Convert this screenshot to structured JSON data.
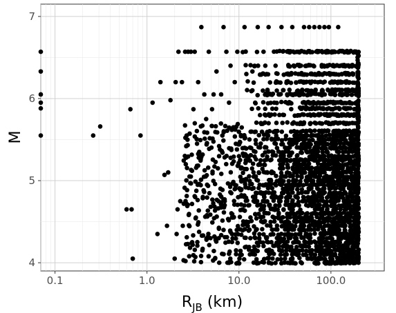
{
  "chart_data": {
    "type": "scatter",
    "title": "",
    "xlabel": {
      "main": "R",
      "subscript": "JB",
      "suffix": " (km)"
    },
    "ylabel": "M",
    "x_scale": "log10",
    "xlim": [
      0.07,
      380
    ],
    "ylim": [
      3.9,
      7.15
    ],
    "x_ticks": [
      {
        "value": 0.1,
        "label": "0.1"
      },
      {
        "value": 1,
        "label": "1.0"
      },
      {
        "value": 10,
        "label": "10.0"
      },
      {
        "value": 100,
        "label": "100.0"
      }
    ],
    "y_ticks": [
      {
        "value": 4,
        "label": "4"
      },
      {
        "value": 5,
        "label": "5"
      },
      {
        "value": 6,
        "label": "6"
      },
      {
        "value": 7,
        "label": "7"
      }
    ],
    "grid": true,
    "legend": "none",
    "point_color": "#000000",
    "magnitude_bands": [
      4.0,
      4.05,
      4.1,
      4.15,
      4.2,
      4.25,
      4.3,
      4.35,
      4.4,
      4.45,
      4.5,
      4.55,
      4.6,
      4.65,
      4.7,
      4.75,
      4.8,
      4.85,
      4.9,
      4.95,
      5.0,
      5.05,
      5.1,
      5.15,
      5.2,
      5.25,
      5.3,
      5.35,
      5.4,
      5.45,
      5.5,
      5.55,
      5.6,
      5.7,
      5.8,
      5.88,
      5.95,
      6.05,
      6.1,
      6.2,
      6.3,
      6.4,
      6.57,
      6.87
    ],
    "points": [
      [
        0.07,
        6.57
      ],
      [
        0.07,
        6.33
      ],
      [
        0.07,
        6.05
      ],
      [
        0.07,
        5.95
      ],
      [
        0.07,
        5.88
      ],
      [
        0.07,
        5.55
      ],
      [
        0.26,
        5.55
      ],
      [
        0.31,
        5.66
      ],
      [
        0.6,
        4.65
      ],
      [
        0.68,
        4.65
      ],
      [
        0.66,
        5.87
      ],
      [
        0.7,
        4.05
      ],
      [
        0.85,
        5.55
      ],
      [
        1.15,
        5.95
      ],
      [
        1.3,
        4.35
      ],
      [
        1.4,
        6.2
      ],
      [
        1.55,
        5.07
      ],
      [
        1.65,
        4.45
      ],
      [
        1.7,
        5.1
      ],
      [
        1.8,
        5.98
      ],
      [
        2.0,
        4.05
      ],
      [
        2.05,
        6.2
      ],
      [
        2.1,
        4.35
      ],
      [
        2.15,
        4.65
      ],
      [
        2.2,
        6.57
      ],
      [
        2.3,
        4.75
      ],
      [
        2.4,
        6.2
      ],
      [
        2.45,
        4.45
      ],
      [
        2.5,
        4.03
      ],
      [
        2.6,
        6.57
      ],
      [
        2.7,
        5.55
      ],
      [
        2.8,
        6.57
      ],
      [
        2.9,
        5.05
      ],
      [
        3.0,
        6.57
      ],
      [
        3.1,
        4.25
      ],
      [
        3.2,
        5.87
      ],
      [
        3.3,
        6.57
      ],
      [
        3.4,
        4.55
      ],
      [
        3.5,
        5.45
      ],
      [
        3.6,
        6.2
      ],
      [
        3.7,
        5.35
      ],
      [
        3.9,
        6.87
      ],
      [
        4.0,
        4.15
      ],
      [
        4.2,
        6.05
      ],
      [
        4.4,
        5.75
      ],
      [
        4.5,
        4.95
      ],
      [
        4.7,
        6.57
      ],
      [
        4.9,
        4.3
      ],
      [
        5.1,
        5.87
      ],
      [
        5.3,
        6.05
      ],
      [
        5.5,
        4.05
      ],
      [
        5.7,
        6.33
      ],
      [
        5.9,
        5.15
      ],
      [
        6.1,
        4.0
      ],
      [
        6.4,
        6.05
      ],
      [
        6.6,
        5.55
      ],
      [
        6.8,
        6.87
      ],
      [
        7.0,
        4.75
      ],
      [
        7.3,
        6.57
      ],
      [
        7.5,
        4.0
      ],
      [
        7.8,
        5.95
      ],
      [
        8.1,
        6.4
      ],
      [
        8.4,
        4.35
      ],
      [
        8.7,
        5.65
      ],
      [
        9.0,
        6.2
      ],
      [
        9.3,
        4.15
      ],
      [
        9.6,
        6.57
      ],
      [
        11.5,
        6.87
      ],
      [
        14.0,
        6.33
      ],
      [
        16.0,
        6.87
      ],
      [
        18.5,
        6.57
      ],
      [
        21.0,
        6.87
      ],
      [
        25.0,
        6.4
      ],
      [
        29.0,
        6.87
      ],
      [
        33.0,
        6.3
      ],
      [
        38.0,
        6.87
      ],
      [
        44.0,
        6.57
      ],
      [
        51.0,
        6.87
      ],
      [
        58.0,
        6.87
      ],
      [
        66.0,
        6.87
      ],
      [
        75.0,
        6.87
      ],
      [
        85.0,
        6.87
      ],
      [
        95.0,
        6.87
      ],
      [
        120.0,
        6.87
      ],
      [
        14.0,
        6.1
      ],
      [
        22.0,
        6.05
      ],
      [
        36.0,
        5.95
      ],
      [
        60.0,
        5.7
      ],
      [
        150.0,
        5.7
      ]
    ]
  }
}
